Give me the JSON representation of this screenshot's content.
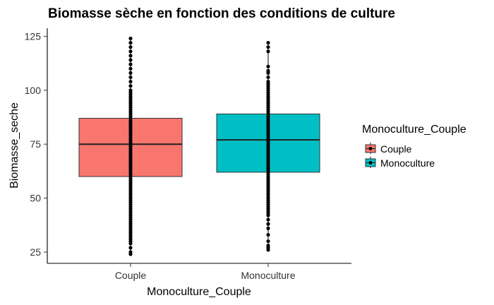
{
  "chart_data": {
    "type": "boxplot",
    "title": "Biomasse sèche en fonction des conditions de culture",
    "xlabel": "Monoculture_Couple",
    "ylabel": "Biomasse_seche",
    "ylim": [
      20,
      128
    ],
    "yticks": [
      25,
      50,
      75,
      100,
      125
    ],
    "categories": [
      "Couple",
      "Monoculture"
    ],
    "grid": false,
    "legend": {
      "title": "Monoculture_Couple",
      "position": "right",
      "entries": [
        "Couple",
        "Monoculture"
      ]
    },
    "series": [
      {
        "name": "Couple",
        "color": "#F8766D",
        "q1": 60,
        "median": 75,
        "q3": 87,
        "points": [
          24,
          25,
          27,
          29,
          30,
          31,
          32,
          33,
          34,
          35,
          36,
          37,
          38,
          39,
          40,
          41,
          42,
          43,
          44,
          45,
          46,
          47,
          48,
          49,
          50,
          51,
          52,
          53,
          54,
          55,
          56,
          57,
          58,
          59,
          60,
          61,
          62,
          63,
          64,
          65,
          66,
          67,
          68,
          69,
          70,
          71,
          72,
          73,
          74,
          75,
          76,
          77,
          78,
          79,
          80,
          81,
          82,
          83,
          84,
          85,
          86,
          87,
          88,
          89,
          90,
          91,
          92,
          93,
          94,
          95,
          96,
          97,
          98,
          99,
          100,
          102,
          104,
          106,
          108,
          110,
          112,
          114,
          116,
          118,
          120,
          122,
          124
        ]
      },
      {
        "name": "Monoculture",
        "color": "#00BFC4",
        "q1": 62,
        "median": 77,
        "q3": 89,
        "points": [
          26,
          27,
          28,
          30,
          33,
          36,
          38,
          40,
          42,
          43,
          44,
          45,
          46,
          47,
          48,
          49,
          50,
          51,
          52,
          53,
          54,
          55,
          56,
          57,
          58,
          59,
          60,
          61,
          62,
          63,
          64,
          65,
          66,
          67,
          68,
          69,
          70,
          71,
          72,
          73,
          74,
          75,
          76,
          77,
          78,
          79,
          80,
          81,
          82,
          83,
          84,
          85,
          86,
          87,
          88,
          89,
          90,
          91,
          92,
          93,
          94,
          95,
          96,
          97,
          98,
          99,
          100,
          101,
          102,
          103,
          104,
          106,
          108,
          109,
          111,
          118,
          120,
          122
        ]
      }
    ]
  }
}
